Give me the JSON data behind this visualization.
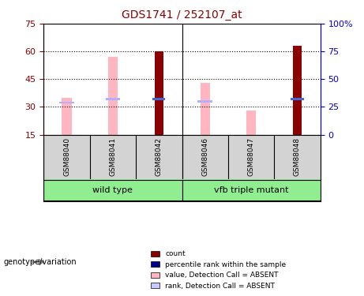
{
  "title": "GDS1741 / 252107_at",
  "samples": [
    "GSM88040",
    "GSM88041",
    "GSM88042",
    "GSM88046",
    "GSM88047",
    "GSM88048"
  ],
  "ylim_left": [
    15,
    75
  ],
  "ylim_right": [
    0,
    100
  ],
  "yticks_left": [
    15,
    30,
    45,
    60,
    75
  ],
  "yticks_right": [
    0,
    25,
    50,
    75,
    100
  ],
  "pink_bar_values": [
    35,
    57,
    0,
    43,
    28,
    0
  ],
  "rank_absent_values": [
    29,
    32,
    0,
    30,
    0,
    0
  ],
  "red_bar_values": [
    0,
    0,
    60,
    0,
    0,
    63
  ],
  "blue_rank_values": [
    0,
    0,
    32,
    0,
    0,
    32
  ],
  "groups": [
    {
      "label": "wild type",
      "samples": [
        0,
        1,
        2
      ],
      "color": "#90EE90"
    },
    {
      "label": "vfb triple mutant",
      "samples": [
        3,
        4,
        5
      ],
      "color": "#90EE90"
    }
  ],
  "legend_items": [
    {
      "label": "count",
      "color": "#8B0000",
      "marker": "s"
    },
    {
      "label": "percentile rank within the sample",
      "color": "#00008B",
      "marker": "s"
    },
    {
      "label": "value, Detection Call = ABSENT",
      "color": "#FFB6C1",
      "marker": "s"
    },
    {
      "label": "rank, Detection Call = ABSENT",
      "color": "#C8C8FF",
      "marker": "s"
    }
  ],
  "title_color": "#8B0000",
  "left_axis_color": "#8B0000",
  "right_axis_color": "#0000CD",
  "bar_width": 0.35,
  "red_bar_color": "#8B0000",
  "pink_bar_color": "#FFB6C1",
  "blue_mark_color": "#4169E1",
  "rank_absent_color": "#B0B0FF",
  "group_label_text": "genotype/variation"
}
